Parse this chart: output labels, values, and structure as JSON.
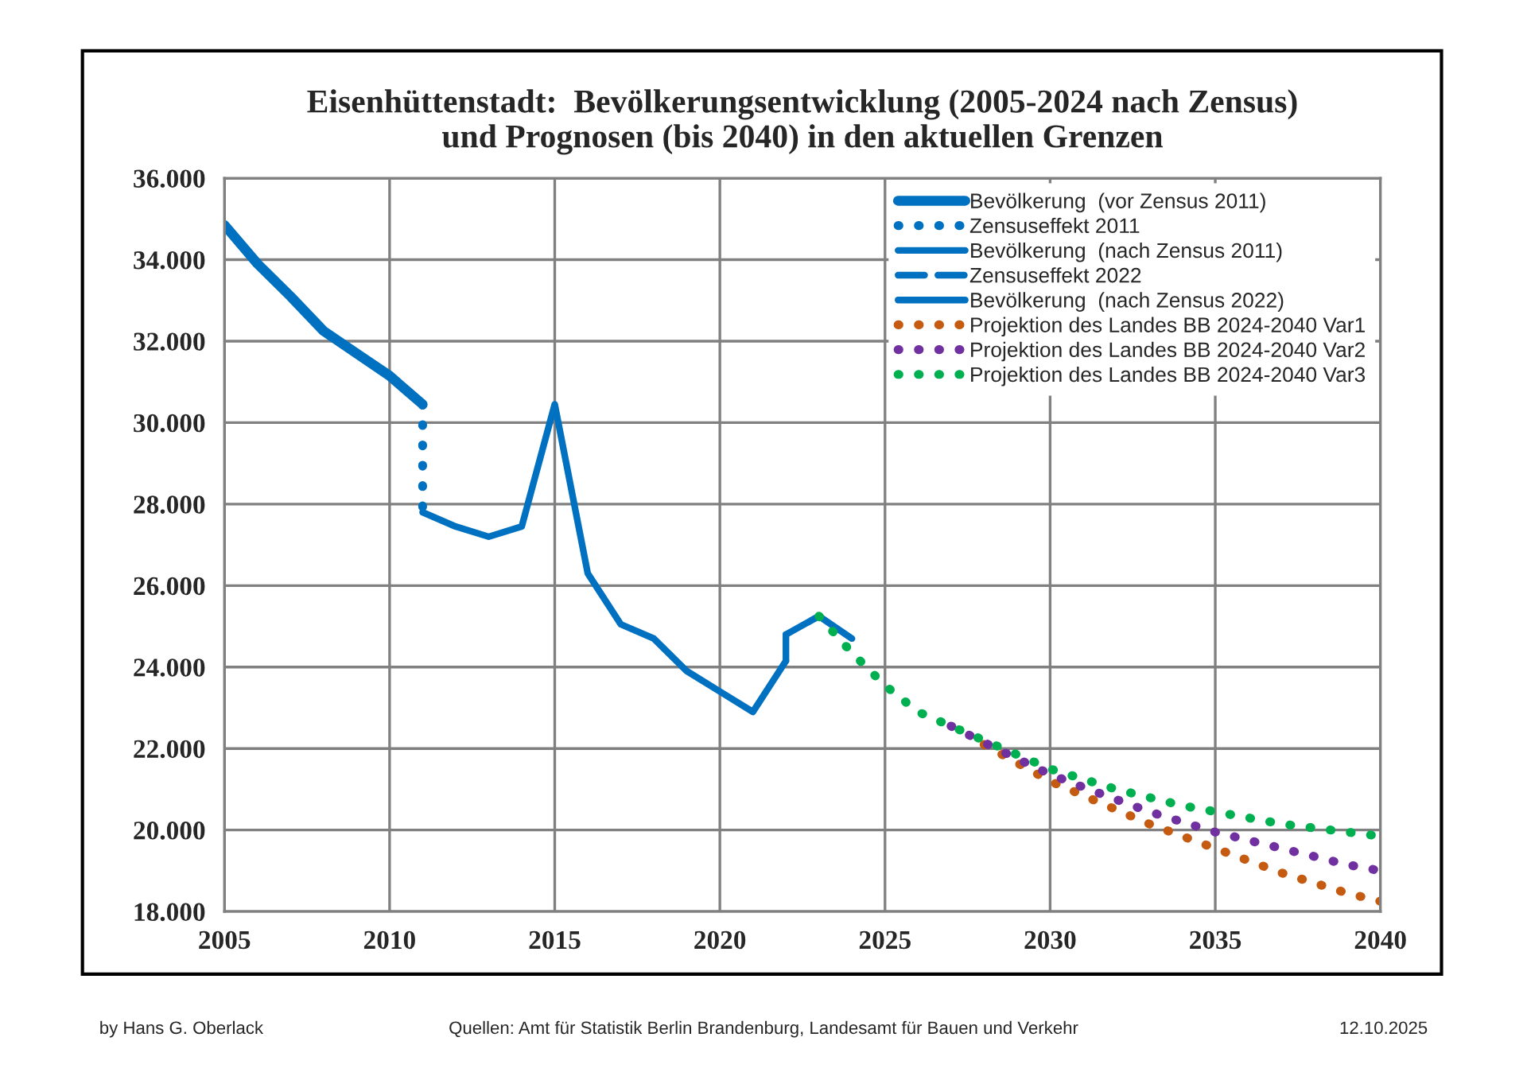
{
  "chart_data": {
    "type": "line",
    "title": "Eisenhüttenstadt:  Bevölkerungsentwicklung (2005-2024 nach Zensus)\nund Prognosen (bis 2040) in den aktuellen Grenzen",
    "series": [
      {
        "name": "Bevölkerung  (vor Zensus 2011)",
        "color": "#0070c0",
        "line_style": "solid",
        "x": [
          2005,
          2006,
          2007,
          2008,
          2009,
          2010,
          2011
        ],
        "values": [
          34850,
          33900,
          33100,
          32250,
          31700,
          31150,
          30450
        ]
      },
      {
        "name": "Zensuseffekt 2011",
        "color": "#0070c0",
        "line_style": "dotted",
        "x": [
          2011,
          2011
        ],
        "values": [
          30450,
          27800
        ]
      },
      {
        "name": "Bevölkerung  (nach Zensus 2011)",
        "color": "#0070c0",
        "line_style": "solid",
        "x": [
          2011,
          2012,
          2013,
          2014,
          2015,
          2016,
          2017,
          2018,
          2019,
          2020,
          2021,
          2022
        ],
        "values": [
          27800,
          27450,
          27200,
          27450,
          30450,
          26300,
          25050,
          24700,
          23900,
          23400,
          22900,
          24150
        ]
      },
      {
        "name": "Zensuseffekt 2022",
        "color": "#0070c0",
        "line_style": "dashed",
        "x": [
          2022,
          2022
        ],
        "values": [
          24150,
          24800
        ]
      },
      {
        "name": "Bevölkerung  (nach Zensus 2022)",
        "color": "#0070c0",
        "line_style": "solid",
        "x": [
          2022,
          2023,
          2024
        ],
        "values": [
          24800,
          25250,
          24700
        ]
      },
      {
        "name": "Projektion des Landes BB 2024-2040 Var1",
        "color": "#c55a11",
        "line_style": "dotted",
        "x": [
          2028,
          2029,
          2030,
          2031,
          2032,
          2033,
          2034,
          2035,
          2036,
          2037,
          2038,
          2039,
          2040
        ],
        "values": [
          22100,
          21650,
          21200,
          20850,
          20500,
          20150,
          19850,
          19550,
          19250,
          18950,
          18700,
          18450,
          18250
        ]
      },
      {
        "name": "Projektion des Landes BB 2024-2040 Var2",
        "color": "#7030a0",
        "line_style": "dotted",
        "x": [
          2027,
          2028,
          2029,
          2030,
          2031,
          2032,
          2033,
          2034,
          2035,
          2036,
          2037,
          2038,
          2039,
          2040
        ],
        "values": [
          22550,
          22150,
          21750,
          21370,
          21050,
          20750,
          20450,
          20200,
          19950,
          19750,
          19550,
          19350,
          19150,
          19000
        ]
      },
      {
        "name": "Projektion des Landes BB 2024-2040 Var3",
        "color": "#00b050",
        "line_style": "dotted",
        "x": [
          2023,
          2024,
          2025,
          2026,
          2027,
          2028,
          2029,
          2030,
          2031,
          2032,
          2033,
          2034,
          2035,
          2036,
          2037,
          2038,
          2039,
          2040
        ],
        "values": [
          25250,
          24350,
          23550,
          22900,
          22550,
          22200,
          21850,
          21500,
          21250,
          21000,
          20800,
          20600,
          20450,
          20300,
          20150,
          20050,
          19950,
          19850
        ]
      }
    ],
    "xlim": [
      2005,
      2040
    ],
    "xticks": [
      2005,
      2010,
      2015,
      2020,
      2025,
      2030,
      2035,
      2040
    ],
    "ylim": [
      18000,
      36000
    ],
    "yticks": [
      {
        "value": 18000,
        "label": "18.000"
      },
      {
        "value": 20000,
        "label": "20.000"
      },
      {
        "value": 22000,
        "label": "22.000"
      },
      {
        "value": 24000,
        "label": "24.000"
      },
      {
        "value": 26000,
        "label": "26.000"
      },
      {
        "value": 28000,
        "label": "28.000"
      },
      {
        "value": 30000,
        "label": "30.000"
      },
      {
        "value": 32000,
        "label": "32.000"
      },
      {
        "value": 34000,
        "label": "34.000"
      },
      {
        "value": 36000,
        "label": "36.000"
      }
    ],
    "grid": true,
    "legend": "top right",
    "annotations": [
      "by Hans G. Oberlack",
      "Quellen: Amt für Statistik Berlin Brandenburg, Landesamt für Bauen und Verkehr",
      "12.10.2025"
    ]
  }
}
